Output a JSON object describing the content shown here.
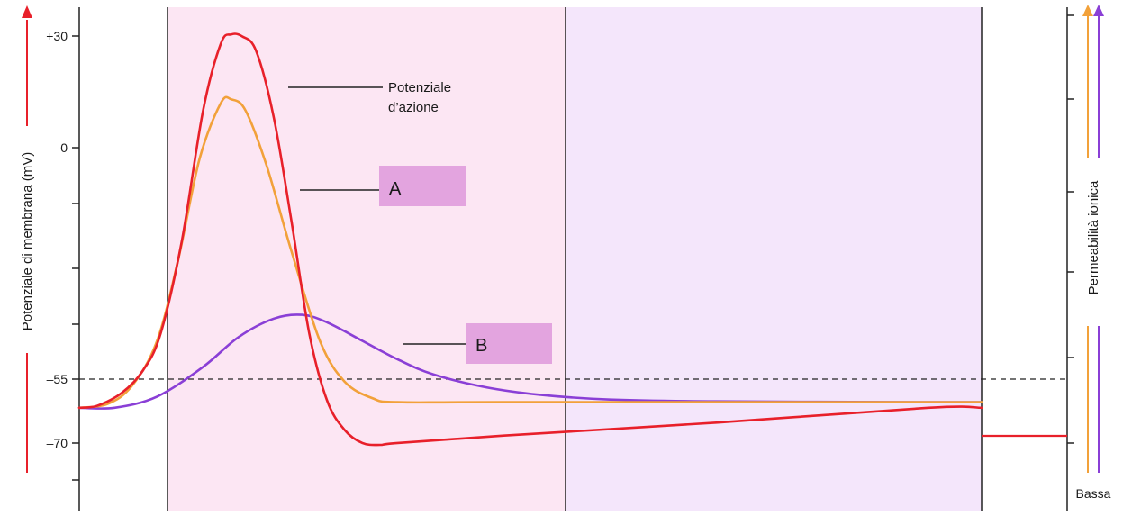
{
  "colors": {
    "membrane_potential": "#e8202a",
    "permeability_a": "#f2a13a",
    "permeability_b": "#8a3fd6",
    "phase1_fill": "#fce6f3",
    "phase2_fill": "#f4e6fb",
    "label_box": "#e3a4df",
    "axis": "#222222"
  },
  "left_axis": {
    "title": "Potenziale di membrana (mV)",
    "ticks": [
      "+30",
      "0",
      "–55",
      "–70"
    ]
  },
  "right_axis": {
    "title": "Permeabilità ionica",
    "low_label": "Bassa"
  },
  "callouts": {
    "action_potential_line1": "Potenziale",
    "action_potential_line2": "d’azione",
    "label_a": "A",
    "label_b": "B"
  },
  "chart_data": {
    "type": "line",
    "xlabel": "",
    "ylabel": "Potenziale di membrana (mV)",
    "ylim": [
      -85,
      38
    ],
    "threshold": -55,
    "series": [
      {
        "name": "Potenziale d’azione",
        "axis": "left",
        "values": [
          [
            0,
            -70
          ],
          [
            0.5,
            -69.5
          ],
          [
            1.2,
            -66
          ],
          [
            1.8,
            -60
          ],
          [
            2.3,
            -50
          ],
          [
            2.9,
            -25
          ],
          [
            3.5,
            10
          ],
          [
            4.0,
            28
          ],
          [
            4.3,
            30.5
          ],
          [
            4.6,
            30
          ],
          [
            5.0,
            26
          ],
          [
            5.5,
            8
          ],
          [
            6.0,
            -20
          ],
          [
            6.5,
            -50
          ],
          [
            7.0,
            -68
          ],
          [
            7.5,
            -76
          ],
          [
            8.0,
            -79.5
          ],
          [
            8.5,
            -80
          ],
          [
            9.0,
            -79.5
          ],
          [
            12.0,
            -77.5
          ],
          [
            18.0,
            -74
          ],
          [
            24.0,
            -70
          ],
          [
            25.5,
            -70
          ]
        ]
      },
      {
        "name": "A",
        "axis": "right",
        "values": [
          [
            0,
            -70
          ],
          [
            0.8,
            -69
          ],
          [
            1.5,
            -64
          ],
          [
            2.2,
            -52
          ],
          [
            2.8,
            -30
          ],
          [
            3.4,
            -3
          ],
          [
            4.0,
            12
          ],
          [
            4.3,
            13
          ],
          [
            4.7,
            10
          ],
          [
            5.3,
            -5
          ],
          [
            6.0,
            -28
          ],
          [
            6.8,
            -52
          ],
          [
            7.5,
            -63
          ],
          [
            8.3,
            -67.5
          ],
          [
            9.0,
            -68.5
          ],
          [
            12.0,
            -68.5
          ],
          [
            24.0,
            -68.5
          ],
          [
            25.5,
            -68.5
          ]
        ]
      },
      {
        "name": "B",
        "axis": "right",
        "values": [
          [
            0,
            -70
          ],
          [
            1.0,
            -70
          ],
          [
            2.2,
            -67
          ],
          [
            3.5,
            -59
          ],
          [
            4.5,
            -51
          ],
          [
            5.5,
            -46
          ],
          [
            6.3,
            -45
          ],
          [
            7.0,
            -47
          ],
          [
            8.0,
            -52
          ],
          [
            9.0,
            -57
          ],
          [
            10.0,
            -61
          ],
          [
            11.5,
            -64.5
          ],
          [
            13.0,
            -66.5
          ],
          [
            15.0,
            -67.8
          ],
          [
            18.0,
            -68.3
          ],
          [
            24.0,
            -68.5
          ],
          [
            25.5,
            -68.5
          ]
        ]
      }
    ]
  }
}
